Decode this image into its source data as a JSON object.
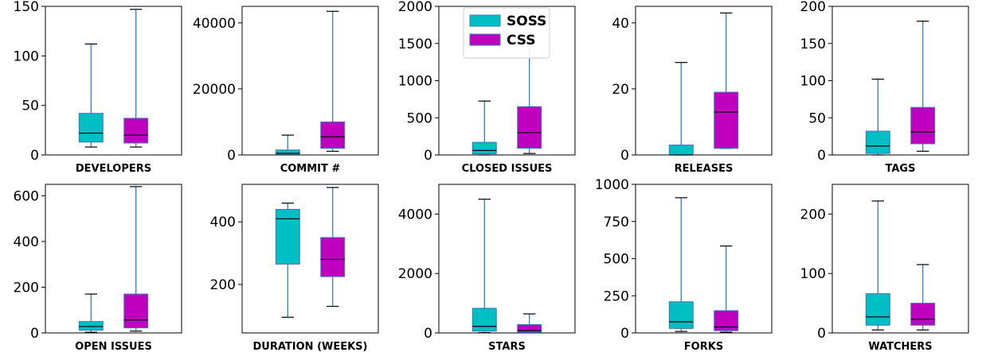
{
  "colors": {
    "soss": "#00bfc4",
    "css": "#bf00bf",
    "edge": "#3a78b8",
    "whisker": "#1f77b4",
    "median": "#000000"
  },
  "legend": {
    "placement": "top-center",
    "entries": [
      {
        "name": "SOSS",
        "color": "#00bfc4"
      },
      {
        "name": "CSS",
        "color": "#bf00bf"
      }
    ]
  },
  "chart_data": [
    {
      "type": "box",
      "xlabel": "DEVELOPERS",
      "ylim": [
        0,
        150
      ],
      "yticks": [
        0,
        50,
        100,
        150
      ],
      "series": [
        {
          "name": "SOSS",
          "whislo": 8,
          "q1": 13,
          "med": 22,
          "q3": 42,
          "whishi": 112
        },
        {
          "name": "CSS",
          "whislo": 8,
          "q1": 12,
          "med": 20,
          "q3": 37,
          "whishi": 147
        }
      ]
    },
    {
      "type": "box",
      "xlabel": "COMMIT #",
      "ylim": [
        0,
        45000
      ],
      "yticks": [
        0,
        20000,
        40000
      ],
      "series": [
        {
          "name": "SOSS",
          "whislo": 50,
          "q1": 200,
          "med": 500,
          "q3": 1500,
          "whishi": 6000
        },
        {
          "name": "CSS",
          "whislo": 1100,
          "q1": 2000,
          "med": 5500,
          "q3": 10000,
          "whishi": 43500
        }
      ]
    },
    {
      "type": "box",
      "xlabel": "CLOSED ISSUES",
      "ylim": [
        0,
        2000
      ],
      "yticks": [
        0,
        500,
        1000,
        1500,
        2000
      ],
      "series": [
        {
          "name": "SOSS",
          "whislo": 0,
          "q1": 15,
          "med": 60,
          "q3": 170,
          "whishi": 725
        },
        {
          "name": "CSS",
          "whislo": 20,
          "q1": 90,
          "med": 300,
          "q3": 650,
          "whishi": 1500
        }
      ]
    },
    {
      "type": "box",
      "xlabel": "RELEASES",
      "ylim": [
        0,
        45
      ],
      "yticks": [
        0,
        20,
        40
      ],
      "series": [
        {
          "name": "SOSS",
          "whislo": 0,
          "q1": 0,
          "med": 0,
          "q3": 3,
          "whishi": 28
        },
        {
          "name": "CSS",
          "whislo": 2,
          "q1": 2,
          "med": 13,
          "q3": 19,
          "whishi": 43
        }
      ]
    },
    {
      "type": "box",
      "xlabel": "TAGS",
      "ylim": [
        0,
        200
      ],
      "yticks": [
        0,
        50,
        100,
        150,
        200
      ],
      "series": [
        {
          "name": "SOSS",
          "whislo": 0,
          "q1": 2,
          "med": 12,
          "q3": 32,
          "whishi": 102
        },
        {
          "name": "CSS",
          "whislo": 5,
          "q1": 15,
          "med": 31,
          "q3": 64,
          "whishi": 180
        }
      ]
    },
    {
      "type": "box",
      "xlabel": "OPEN ISSUES",
      "ylim": [
        0,
        650
      ],
      "yticks": [
        0,
        200,
        400,
        600
      ],
      "series": [
        {
          "name": "SOSS",
          "whislo": 3,
          "q1": 12,
          "med": 28,
          "q3": 50,
          "whishi": 170
        },
        {
          "name": "CSS",
          "whislo": 8,
          "q1": 22,
          "med": 57,
          "q3": 170,
          "whishi": 640
        }
      ]
    },
    {
      "type": "box",
      "xlabel": "DURATION (WEEKS)",
      "ylim": [
        45,
        520
      ],
      "yticks": [
        200,
        400
      ],
      "series": [
        {
          "name": "SOSS",
          "whislo": 95,
          "q1": 265,
          "med": 410,
          "q3": 440,
          "whishi": 460
        },
        {
          "name": "CSS",
          "whislo": 130,
          "q1": 225,
          "med": 280,
          "q3": 350,
          "whishi": 510
        }
      ]
    },
    {
      "type": "box",
      "xlabel": "STARS",
      "ylim": [
        0,
        5000
      ],
      "yticks": [
        0,
        2000,
        4000
      ],
      "series": [
        {
          "name": "SOSS",
          "whislo": 10,
          "q1": 60,
          "med": 220,
          "q3": 830,
          "whishi": 4500
        },
        {
          "name": "CSS",
          "whislo": 3,
          "q1": 20,
          "med": 80,
          "q3": 280,
          "whishi": 640
        }
      ]
    },
    {
      "type": "box",
      "xlabel": "FORKS",
      "ylim": [
        0,
        1000
      ],
      "yticks": [
        0,
        250,
        500,
        750,
        1000
      ],
      "series": [
        {
          "name": "SOSS",
          "whislo": 10,
          "q1": 30,
          "med": 75,
          "q3": 210,
          "whishi": 910
        },
        {
          "name": "CSS",
          "whislo": 5,
          "q1": 15,
          "med": 40,
          "q3": 150,
          "whishi": 585
        }
      ]
    },
    {
      "type": "box",
      "xlabel": "WATCHERS",
      "ylim": [
        0,
        250
      ],
      "yticks": [
        0,
        100,
        200
      ],
      "series": [
        {
          "name": "SOSS",
          "whislo": 5,
          "q1": 13,
          "med": 27,
          "q3": 66,
          "whishi": 222
        },
        {
          "name": "CSS",
          "whislo": 5,
          "q1": 13,
          "med": 23,
          "q3": 50,
          "whishi": 115
        }
      ]
    }
  ]
}
